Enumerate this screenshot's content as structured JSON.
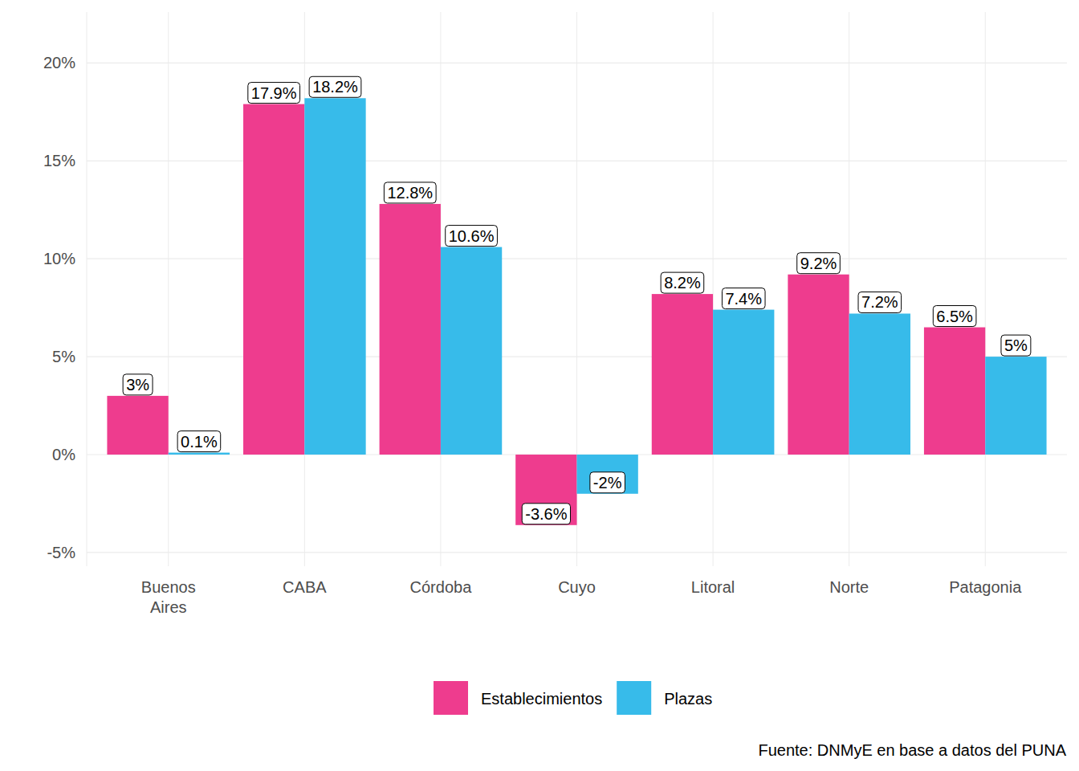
{
  "chart_data": {
    "type": "bar",
    "categories": [
      "Buenos Aires",
      "CABA",
      "Córdoba",
      "Cuyo",
      "Litoral",
      "Norte",
      "Patagonia"
    ],
    "series": [
      {
        "name": "Establecimientos",
        "color": "#ee3c8e",
        "values": [
          3,
          17.9,
          12.8,
          -3.6,
          8.2,
          9.2,
          6.5
        ],
        "value_labels": [
          "3%",
          "17.9%",
          "12.8%",
          "-3.6%",
          "8.2%",
          "9.2%",
          "6.5%"
        ]
      },
      {
        "name": "Plazas",
        "color": "#37bbea",
        "values": [
          0.1,
          18.2,
          10.6,
          -2,
          7.4,
          7.2,
          5
        ],
        "value_labels": [
          "0.1%",
          "18.2%",
          "10.6%",
          "-2%",
          "7.4%",
          "7.2%",
          "5%"
        ]
      }
    ],
    "ylim": [
      -5.7,
      22.6
    ],
    "yticks": [
      {
        "value": -5,
        "label": "-5%"
      },
      {
        "value": 0,
        "label": "0%"
      },
      {
        "value": 5,
        "label": "5%"
      },
      {
        "value": 10,
        "label": "10%"
      },
      {
        "value": 15,
        "label": "15%"
      },
      {
        "value": 20,
        "label": "20%"
      }
    ],
    "grid": true,
    "legend": "bottom",
    "data_labels": true,
    "caption": "Fuente: DNMyE en base a datos del PUNA"
  }
}
